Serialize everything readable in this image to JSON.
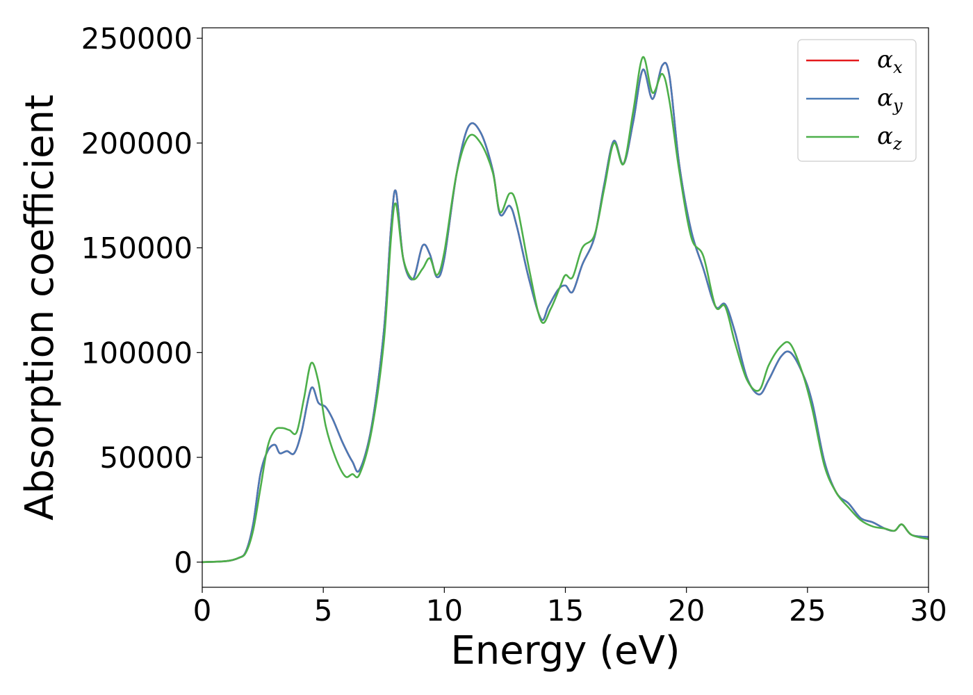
{
  "chart_data": {
    "type": "line",
    "xlabel": "Energy (eV)",
    "ylabel": "Absorption coefficient",
    "xlim": [
      0,
      30
    ],
    "ylim": [
      -12000,
      255000
    ],
    "x_ticks": [
      0,
      5,
      10,
      15,
      20,
      25,
      30
    ],
    "x_tick_labels": [
      "0",
      "5",
      "10",
      "15",
      "20",
      "25",
      "30"
    ],
    "y_ticks": [
      0,
      50000,
      100000,
      150000,
      200000,
      250000
    ],
    "y_tick_labels": [
      "0",
      "50000",
      "100000",
      "150000",
      "200000",
      "250000"
    ],
    "grid": false,
    "legend_position": "top-right",
    "series": [
      {
        "name": "α_x",
        "legend_base": "α",
        "legend_sub": "x",
        "color": "#e41a1c",
        "x": [
          0,
          1,
          1.5,
          1.8,
          2.1,
          2.4,
          2.7,
          3.0,
          3.2,
          3.5,
          3.8,
          4.1,
          4.5,
          4.8,
          5.1,
          5.4,
          5.8,
          6.2,
          6.5,
          7.0,
          7.5,
          7.8,
          8.0,
          8.3,
          8.7,
          9.1,
          9.4,
          9.7,
          10.0,
          10.5,
          11.0,
          11.5,
          12.0,
          12.3,
          12.7,
          13.0,
          13.5,
          14.0,
          14.3,
          14.7,
          15.0,
          15.3,
          15.7,
          16.2,
          16.6,
          17.0,
          17.4,
          17.8,
          18.2,
          18.6,
          19.0,
          19.3,
          19.7,
          20.2,
          20.7,
          21.2,
          21.6,
          22.0,
          22.5,
          23.0,
          23.4,
          23.9,
          24.3,
          24.8,
          25.2,
          25.7,
          26.2,
          26.7,
          27.2,
          27.7,
          28.2,
          28.6,
          28.9,
          29.3,
          30.0
        ],
        "y": [
          0,
          500,
          2000,
          5000,
          18000,
          42000,
          53000,
          56000,
          52000,
          53000,
          52000,
          62000,
          83000,
          76000,
          74000,
          68000,
          57000,
          48000,
          44000,
          65000,
          110000,
          160000,
          177000,
          145000,
          135000,
          151000,
          147000,
          136000,
          145000,
          185000,
          208000,
          205000,
          187000,
          166000,
          170000,
          160000,
          135000,
          116000,
          122000,
          130000,
          132000,
          129000,
          142000,
          155000,
          180000,
          201000,
          190000,
          210000,
          235000,
          221000,
          237000,
          232000,
          190000,
          158000,
          140000,
          122000,
          123000,
          110000,
          88000,
          80000,
          87000,
          98000,
          100000,
          90000,
          76000,
          48000,
          33000,
          28000,
          21000,
          19000,
          16000,
          15000,
          18000,
          13000,
          12000
        ]
      },
      {
        "name": "α_y",
        "legend_base": "α",
        "legend_sub": "y",
        "color": "#4a7ab6",
        "x": [
          0,
          1,
          1.5,
          1.8,
          2.1,
          2.4,
          2.7,
          3.0,
          3.2,
          3.5,
          3.8,
          4.1,
          4.5,
          4.8,
          5.1,
          5.4,
          5.8,
          6.2,
          6.5,
          7.0,
          7.5,
          7.8,
          8.0,
          8.3,
          8.7,
          9.1,
          9.4,
          9.7,
          10.0,
          10.5,
          11.0,
          11.5,
          12.0,
          12.3,
          12.7,
          13.0,
          13.5,
          14.0,
          14.3,
          14.7,
          15.0,
          15.3,
          15.7,
          16.2,
          16.6,
          17.0,
          17.4,
          17.8,
          18.2,
          18.6,
          19.0,
          19.3,
          19.7,
          20.2,
          20.7,
          21.2,
          21.6,
          22.0,
          22.5,
          23.0,
          23.4,
          23.9,
          24.3,
          24.8,
          25.2,
          25.7,
          26.2,
          26.7,
          27.2,
          27.7,
          28.2,
          28.6,
          28.9,
          29.3,
          30.0
        ],
        "y": [
          0,
          500,
          2000,
          5000,
          18000,
          42000,
          53000,
          56000,
          52000,
          53000,
          52000,
          62000,
          83000,
          76000,
          74000,
          68000,
          57000,
          48000,
          44000,
          65000,
          110000,
          160000,
          177000,
          145000,
          135000,
          151000,
          147000,
          136000,
          145000,
          185000,
          208000,
          205000,
          187000,
          166000,
          170000,
          160000,
          135000,
          116000,
          122000,
          130000,
          132000,
          129000,
          142000,
          155000,
          180000,
          201000,
          190000,
          210000,
          235000,
          221000,
          237000,
          232000,
          190000,
          158000,
          140000,
          122000,
          123000,
          110000,
          88000,
          80000,
          87000,
          98000,
          100000,
          90000,
          76000,
          48000,
          33000,
          28000,
          21000,
          19000,
          16000,
          15000,
          18000,
          13000,
          12000
        ]
      },
      {
        "name": "α_z",
        "legend_base": "α",
        "legend_sub": "z",
        "color": "#4daf4a",
        "x": [
          0,
          1,
          1.5,
          1.8,
          2.1,
          2.4,
          2.7,
          3.0,
          3.3,
          3.6,
          3.9,
          4.2,
          4.5,
          4.8,
          5.1,
          5.5,
          5.9,
          6.2,
          6.5,
          7.0,
          7.5,
          7.8,
          8.0,
          8.3,
          8.7,
          9.1,
          9.4,
          9.7,
          10.0,
          10.5,
          11.0,
          11.5,
          12.0,
          12.3,
          12.7,
          13.0,
          13.5,
          14.0,
          14.4,
          14.8,
          15.0,
          15.3,
          15.7,
          16.2,
          16.6,
          17.0,
          17.4,
          17.8,
          18.2,
          18.6,
          19.0,
          19.3,
          19.7,
          20.2,
          20.7,
          21.2,
          21.6,
          22.0,
          22.5,
          23.0,
          23.4,
          23.9,
          24.3,
          24.8,
          25.2,
          25.7,
          26.2,
          26.7,
          27.2,
          27.7,
          28.2,
          28.6,
          28.9,
          29.3,
          30.0
        ],
        "y": [
          0,
          500,
          2000,
          4500,
          15000,
          35000,
          55000,
          63000,
          64000,
          63000,
          62000,
          78000,
          95000,
          86000,
          65000,
          50000,
          41000,
          42000,
          42000,
          63000,
          105000,
          155000,
          171000,
          145000,
          135000,
          140000,
          145000,
          137000,
          148000,
          185000,
          203000,
          200000,
          186000,
          167000,
          176000,
          170000,
          140000,
          115000,
          121000,
          132000,
          137000,
          136000,
          150000,
          156000,
          178000,
          200000,
          190000,
          215000,
          241000,
          224000,
          233000,
          220000,
          187000,
          155000,
          146000,
          122000,
          122000,
          105000,
          87000,
          82000,
          94000,
          103000,
          104000,
          90000,
          73000,
          46000,
          33000,
          26000,
          20000,
          17000,
          16000,
          15000,
          18000,
          13000,
          11000
        ]
      }
    ]
  }
}
